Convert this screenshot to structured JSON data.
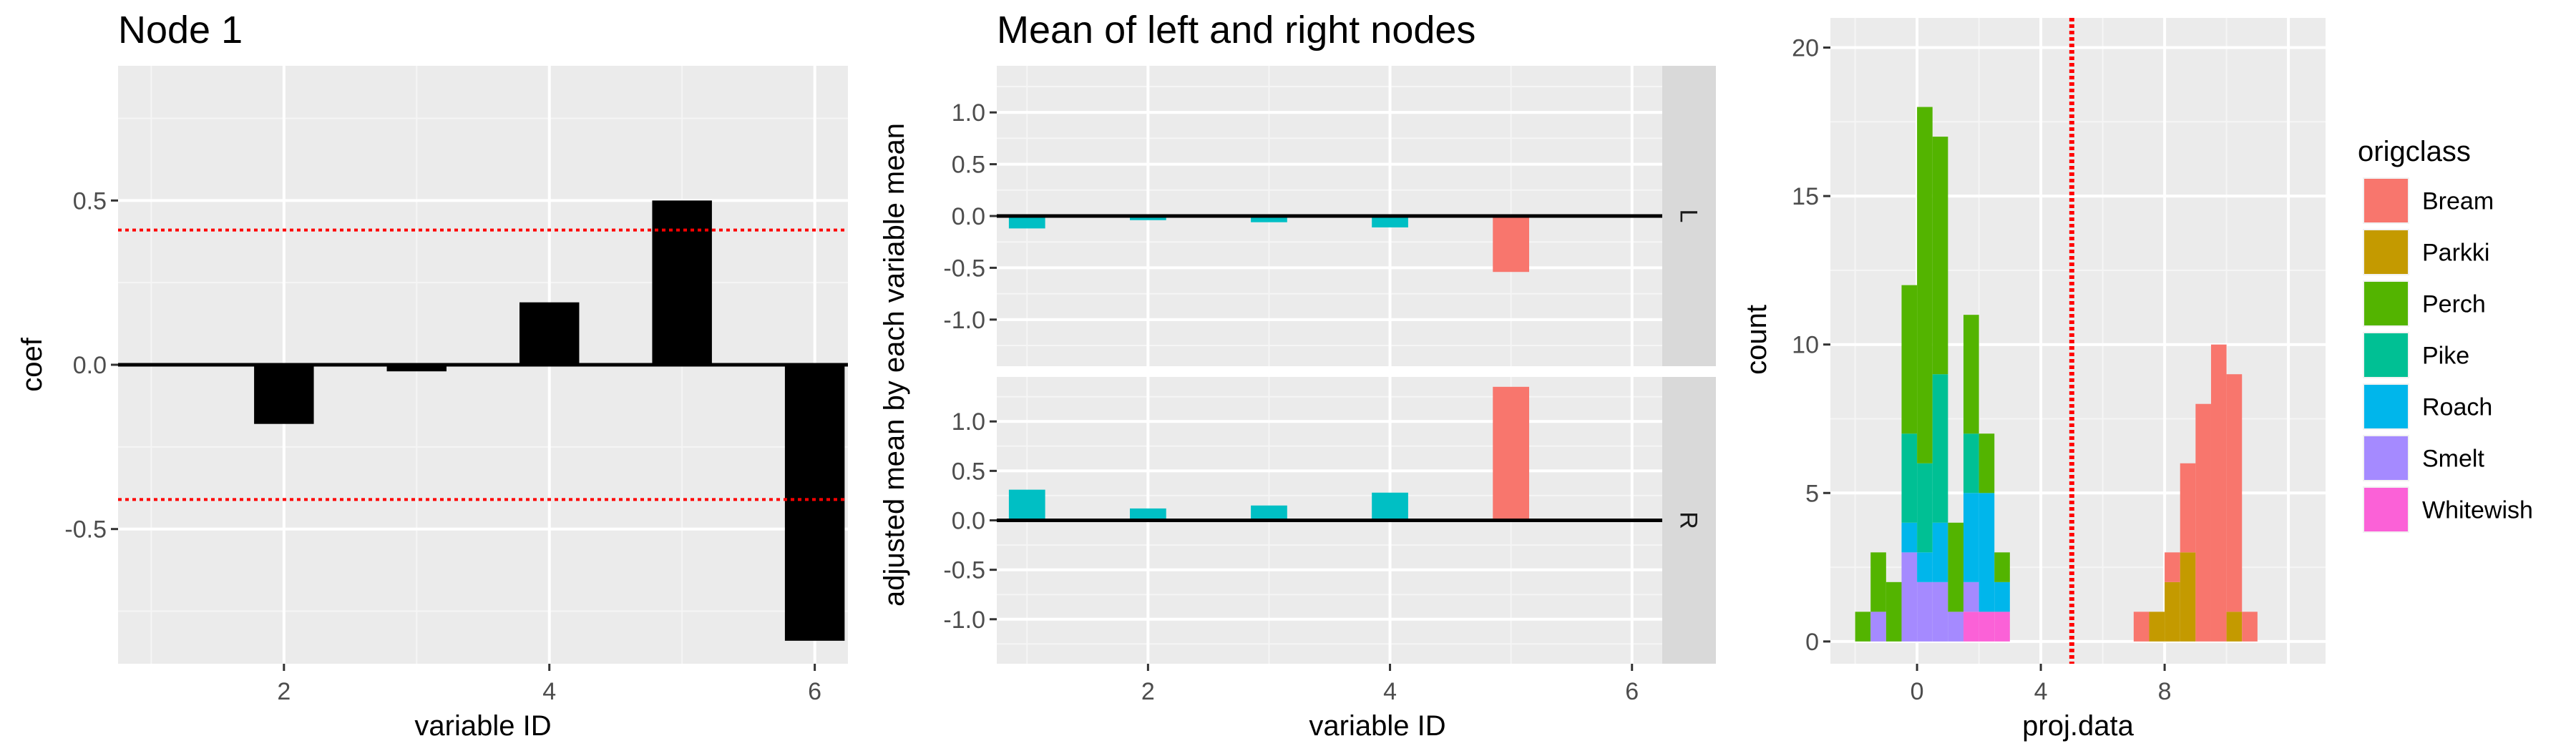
{
  "chart_data": [
    {
      "type": "bar",
      "title": "Node 1",
      "xlabel": "variable ID",
      "ylabel": "coef",
      "xlim": [
        0.75,
        6.25
      ],
      "ylim": [
        -0.91,
        0.91
      ],
      "xticks": [
        2,
        4,
        6
      ],
      "xtick_labels": [
        "2",
        "4",
        "6"
      ],
      "yticks": [
        -0.5,
        0.0,
        0.5
      ],
      "ytick_labels": [
        "-0.5",
        "0.0",
        "0.5"
      ],
      "x": [
        2,
        3,
        4,
        5,
        6
      ],
      "values": [
        -0.18,
        -0.02,
        0.19,
        0.5,
        -0.84
      ],
      "bar_color": "#000000",
      "zero_line": 0,
      "reference_lines": [
        0.41,
        -0.41
      ],
      "reference_color": "#ff0000",
      "grid": true
    },
    {
      "type": "bar",
      "title": "Mean of left and right nodes",
      "xlabel": "variable ID",
      "ylabel": "adjusted mean by each variable mean",
      "xlim": [
        0.75,
        6.25
      ],
      "ylim": [
        -1.45,
        1.45
      ],
      "xticks": [
        2,
        4,
        6
      ],
      "xtick_labels": [
        "2",
        "4",
        "6"
      ],
      "yticks": [
        -1.0,
        -0.5,
        0.0,
        0.5,
        1.0
      ],
      "ytick_labels": [
        "-1.0",
        "-0.5",
        "0.0",
        "0.5",
        "1.0"
      ],
      "facets": [
        {
          "label": "L",
          "x": [
            1,
            2,
            3,
            4,
            5
          ],
          "values": [
            -0.12,
            -0.04,
            -0.06,
            -0.11,
            -0.54
          ],
          "colors": [
            "#00bfc4",
            "#00bfc4",
            "#00bfc4",
            "#00bfc4",
            "#f8766d"
          ]
        },
        {
          "label": "R",
          "x": [
            1,
            2,
            3,
            4,
            5
          ],
          "values": [
            0.31,
            0.12,
            0.15,
            0.28,
            1.35
          ],
          "colors": [
            "#00bfc4",
            "#00bfc4",
            "#00bfc4",
            "#00bfc4",
            "#f8766d"
          ]
        }
      ],
      "grid": true
    },
    {
      "type": "bar",
      "subtype": "stacked histogram",
      "xlabel": "proj.data",
      "ylabel": "count",
      "xlim": [
        -2.8,
        13.2
      ],
      "ylim": [
        -0.75,
        21
      ],
      "xticks": [
        0,
        4,
        8
      ],
      "xtick_labels": [
        "0",
        "4",
        "8"
      ],
      "yticks": [
        0,
        5,
        10,
        15,
        20
      ],
      "ytick_labels": [
        "0",
        "5",
        "10",
        "15",
        "20"
      ],
      "bin_start": -2.0,
      "bin_width": 0.5,
      "categories": [
        "-1.75",
        "-1.25",
        "-0.75",
        "-0.25",
        "0.25",
        "0.75",
        "1.25",
        "1.75",
        "2.25",
        "2.75",
        "3.25",
        "3.75",
        "4.25",
        "4.75",
        "5.25",
        "5.75",
        "6.25",
        "6.75",
        "7.25",
        "7.75",
        "8.25",
        "8.75",
        "9.25",
        "9.75",
        "10.25",
        "10.75"
      ],
      "series": [
        {
          "name": "Bream",
          "color": "#f8766d",
          "values": [
            0,
            0,
            0,
            0,
            0,
            0,
            0,
            0,
            0,
            0,
            0,
            0,
            0,
            0,
            0,
            0,
            0,
            0,
            1,
            0,
            1,
            3,
            8,
            10,
            8,
            1
          ]
        },
        {
          "name": "Parkki",
          "color": "#c49a00",
          "values": [
            0,
            0,
            0,
            0,
            0,
            0,
            0,
            0,
            0,
            0,
            0,
            0,
            0,
            0,
            0,
            0,
            0,
            0,
            0,
            1,
            2,
            3,
            0,
            0,
            1,
            0
          ]
        },
        {
          "name": "Perch",
          "color": "#53b400",
          "values": [
            1,
            2,
            2,
            5,
            12,
            8,
            3,
            4,
            2,
            1,
            0,
            0,
            0,
            0,
            0,
            0,
            0,
            0,
            0,
            0,
            0,
            0,
            0,
            0,
            0,
            0
          ]
        },
        {
          "name": "Pike",
          "color": "#00c094",
          "values": [
            0,
            0,
            0,
            3,
            3,
            5,
            0,
            2,
            0,
            0,
            0,
            0,
            0,
            0,
            0,
            0,
            0,
            0,
            0,
            0,
            0,
            0,
            0,
            0,
            0,
            0
          ]
        },
        {
          "name": "Roach",
          "color": "#00b6eb",
          "values": [
            0,
            0,
            0,
            1,
            1,
            2,
            0,
            3,
            4,
            1,
            0,
            0,
            0,
            0,
            0,
            0,
            0,
            0,
            0,
            0,
            0,
            0,
            0,
            0,
            0,
            0
          ]
        },
        {
          "name": "Smelt",
          "color": "#a58aff",
          "values": [
            0,
            1,
            0,
            3,
            2,
            2,
            1,
            1,
            0,
            0,
            0,
            0,
            0,
            0,
            0,
            0,
            0,
            0,
            0,
            0,
            0,
            0,
            0,
            0,
            0,
            0
          ]
        },
        {
          "name": "Whitewish",
          "color": "#fb61d7",
          "values": [
            0,
            0,
            0,
            0,
            0,
            0,
            0,
            1,
            1,
            1,
            0,
            0,
            0,
            0,
            0,
            0,
            0,
            0,
            0,
            0,
            0,
            0,
            0,
            0,
            0,
            0
          ]
        }
      ],
      "vline": 5.0,
      "vline_color": "#ff0000",
      "legend": {
        "title": "origclass",
        "position": "right"
      },
      "grid": true
    }
  ]
}
